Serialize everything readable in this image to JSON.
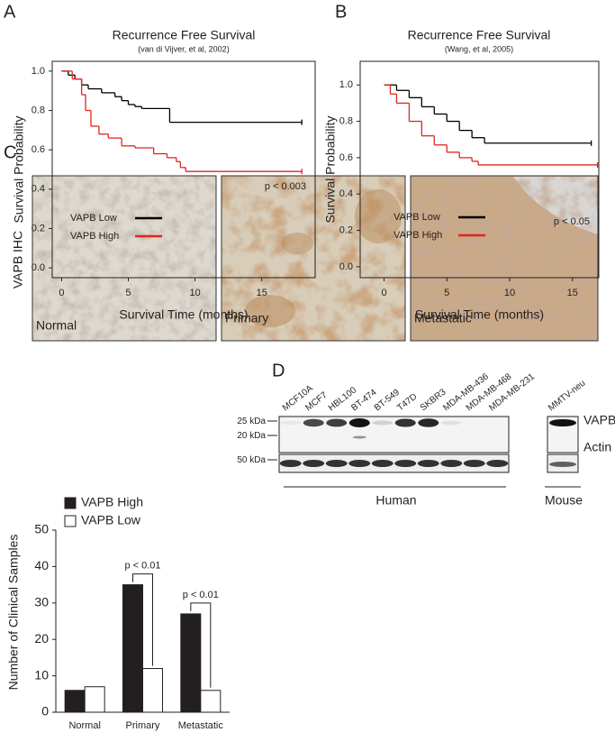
{
  "panel_labels": [
    "A",
    "B",
    "C",
    "D"
  ],
  "chart_data": [
    {
      "type": "line",
      "step": true,
      "title": "Recurrence Free Survival",
      "subtitle": "(van di Vijver, et al, 2002)",
      "x_label": "Survival Time (months)",
      "y_label": "Survival Probability",
      "annotation": "p < 0.003",
      "legend": "lower left",
      "series": [
        {
          "name": "VAPB Low",
          "color": "#000000",
          "x": [
            0,
            0.5,
            1,
            1.5,
            2,
            3,
            4,
            4.5,
            5,
            5.5,
            6,
            8.1,
            18
          ],
          "values": [
            1.0,
            0.98,
            0.96,
            0.93,
            0.91,
            0.89,
            0.87,
            0.85,
            0.83,
            0.82,
            0.81,
            0.74,
            0.74
          ]
        },
        {
          "name": "VAPB High",
          "color": "#e0261b",
          "x": [
            0,
            0.8,
            1.5,
            1.8,
            2.2,
            2.8,
            3.5,
            4.5,
            5.5,
            6.9,
            7.9,
            8.6,
            8.9,
            9.3,
            18
          ],
          "values": [
            1.0,
            0.96,
            0.88,
            0.8,
            0.72,
            0.68,
            0.66,
            0.62,
            0.61,
            0.58,
            0.56,
            0.54,
            0.51,
            0.49,
            0.49
          ]
        }
      ],
      "xlim": [
        -0.7,
        19
      ],
      "xticks": [
        0,
        5,
        10,
        15
      ],
      "ylim": [
        -0.05,
        1.05
      ],
      "yticks": [
        {
          "value": 0,
          "label": "0.0"
        },
        0.2,
        0.4,
        0.6,
        0.8,
        {
          "value": 1,
          "label": "1.0"
        }
      ]
    },
    {
      "type": "line",
      "step": true,
      "title": "Recurrence Free Survival",
      "subtitle": "(Wang, et al, 2005)",
      "x_label": "Survival Time (months)",
      "y_label": "Survival Probability",
      "annotation": "p < 0.05",
      "legend": "lower left",
      "series": [
        {
          "name": "VAPB Low",
          "color": "#000000",
          "x": [
            0,
            1,
            2,
            3,
            4,
            5,
            6,
            7,
            8,
            16.5
          ],
          "values": [
            1.0,
            0.97,
            0.93,
            0.88,
            0.84,
            0.8,
            0.75,
            0.71,
            0.68,
            0.68
          ]
        },
        {
          "name": "VAPB High",
          "color": "#e0261b",
          "x": [
            0,
            0.5,
            1,
            2,
            3,
            4,
            5,
            6,
            7,
            7.5,
            17
          ],
          "values": [
            1.0,
            0.95,
            0.9,
            0.8,
            0.72,
            0.67,
            0.63,
            0.6,
            0.58,
            0.56,
            0.56
          ]
        }
      ],
      "xlim": [
        -1.9,
        17.1
      ],
      "xticks": [
        0,
        5,
        10,
        15
      ],
      "ylim": [
        -0.06,
        1.13
      ],
      "yticks": [
        {
          "value": 0,
          "label": "0.0"
        },
        0.2,
        0.4,
        0.6,
        0.8,
        {
          "value": 1,
          "label": "1.0"
        }
      ]
    },
    {
      "type": "bar",
      "y_label": "Number of Clinical Samples",
      "categories": [
        "Normal",
        "Primary",
        "Metastatic"
      ],
      "series": [
        {
          "name": "VAPB High",
          "color": "#231f20",
          "values": [
            6,
            35,
            27
          ]
        },
        {
          "name": "VAPB Low",
          "color": "#ffffff",
          "values": [
            7,
            12,
            6
          ]
        }
      ],
      "ylim": [
        0,
        50
      ],
      "yticks": [
        0,
        10,
        20,
        30,
        40,
        50
      ],
      "annotations": [
        "p < 0.01",
        "p < 0.01"
      ],
      "legend": "upper left"
    }
  ],
  "ihc": {
    "label": "VAPB IHC",
    "images": [
      "Normal",
      "Primary",
      "Metastatic"
    ]
  },
  "western_blot": {
    "lanes": [
      "MCF10A",
      "MCF7",
      "HBL100",
      "BT-474",
      "BT-549",
      "T47D",
      "SKBR3",
      "MDA-MB-436",
      "MDA-MB-468",
      "MDA-MB-231"
    ],
    "mouse_lanes": [
      "MMTV-neu"
    ],
    "markers": [
      "25 kDa",
      "20 kDa",
      "50 kDa"
    ],
    "proteins": [
      "VAPB",
      "Actin"
    ],
    "groups": [
      "Human",
      "Mouse"
    ]
  }
}
